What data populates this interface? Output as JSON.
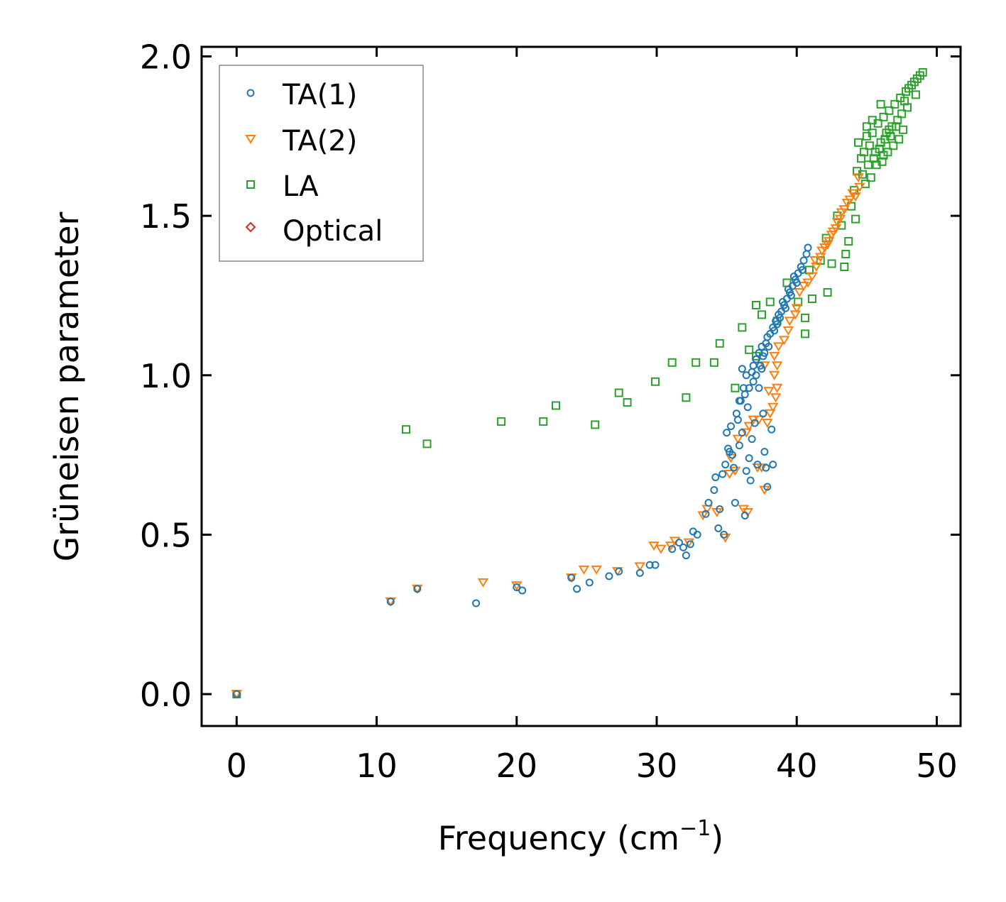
{
  "chart_data": {
    "type": "scatter",
    "title": "",
    "xlabel": "Frequency (cm",
    "xlabel_sup": "−1",
    "xlabel_end": ")",
    "ylabel": "Grüneisen parameter",
    "xlim": [
      -2.5,
      51.7
    ],
    "ylim": [
      -0.1,
      2.03
    ],
    "xticks": [
      0,
      10,
      20,
      30,
      40,
      50
    ],
    "xtick_labels": [
      "0",
      "10",
      "20",
      "30",
      "40",
      "50"
    ],
    "yticks": [
      0.0,
      0.5,
      1.0,
      1.5,
      2.0
    ],
    "ytick_labels": [
      "0.0",
      "0.5",
      "1.0",
      "1.5",
      "2.0"
    ],
    "grid": false,
    "legend_position": "top-left",
    "colors": {
      "ta1": "#1f77b4",
      "ta2": "#ff7f0e",
      "la": "#2ca02c",
      "optical": "#d62728"
    },
    "series": [
      {
        "name": "TA(1)",
        "marker": "circle",
        "color": "#1f77b4",
        "points": [
          [
            0,
            0
          ],
          [
            11,
            0.29
          ],
          [
            12.9,
            0.33
          ],
          [
            17.1,
            0.285
          ],
          [
            20,
            0.335
          ],
          [
            20.4,
            0.325
          ],
          [
            23.9,
            0.365
          ],
          [
            24.3,
            0.33
          ],
          [
            25.2,
            0.35
          ],
          [
            26.6,
            0.37
          ],
          [
            27.3,
            0.385
          ],
          [
            28.8,
            0.38
          ],
          [
            29.5,
            0.405
          ],
          [
            29.9,
            0.405
          ],
          [
            31.1,
            0.455
          ],
          [
            31.6,
            0.475
          ],
          [
            31.9,
            0.46
          ],
          [
            32.1,
            0.435
          ],
          [
            32.4,
            0.47
          ],
          [
            32.6,
            0.51
          ],
          [
            32.9,
            0.5
          ],
          [
            33.5,
            0.565
          ],
          [
            33.7,
            0.6
          ],
          [
            34.1,
            0.64
          ],
          [
            34.2,
            0.68
          ],
          [
            34.4,
            0.52
          ],
          [
            34.5,
            0.58
          ],
          [
            34.7,
            0.69
          ],
          [
            34.8,
            0.5
          ],
          [
            34.9,
            0.72
          ],
          [
            35,
            0.82
          ],
          [
            35.1,
            0.77
          ],
          [
            35.2,
            0.76
          ],
          [
            35.3,
            0.84
          ],
          [
            35.5,
            0.71
          ],
          [
            35.6,
            0.6
          ],
          [
            35.7,
            0.88
          ],
          [
            35.8,
            0.86
          ],
          [
            35.9,
            0.78
          ],
          [
            36,
            0.92
          ],
          [
            36.1,
            0.82
          ],
          [
            36.2,
            0.96
          ],
          [
            36.3,
            0.56
          ],
          [
            36.4,
            0.7
          ],
          [
            36.5,
            0.9
          ],
          [
            36.6,
            0.74
          ],
          [
            36.7,
            0.67
          ],
          [
            36.8,
            0.8
          ],
          [
            36.9,
            0.98
          ],
          [
            37,
            0.85
          ],
          [
            37.1,
            1.0
          ],
          [
            37.2,
            0.72
          ],
          [
            37.3,
            0.96
          ],
          [
            37.5,
            1.02
          ],
          [
            37.6,
            0.88
          ],
          [
            37.7,
            0.76
          ],
          [
            37.8,
            0.71
          ],
          [
            37.9,
            0.65
          ],
          [
            38.2,
            0.83
          ],
          [
            38.3,
            0.72
          ],
          [
            35.4,
            0.75
          ],
          [
            35.9,
            0.92
          ],
          [
            36.3,
            0.94
          ],
          [
            36.6,
            0.96
          ],
          [
            36.8,
            1.01
          ],
          [
            36.9,
            1.03
          ],
          [
            37.1,
            1.05
          ],
          [
            37.3,
            1.07
          ],
          [
            37.5,
            1.09
          ],
          [
            37.6,
            1.06
          ],
          [
            37.8,
            1.1
          ],
          [
            37.9,
            1.12
          ],
          [
            38.1,
            1.13
          ],
          [
            38.3,
            1.15
          ],
          [
            38.5,
            1.17
          ],
          [
            38.7,
            1.19
          ],
          [
            38.9,
            1.2
          ],
          [
            39.1,
            1.22
          ],
          [
            39.3,
            1.24
          ],
          [
            39.5,
            1.26
          ],
          [
            39.7,
            1.28
          ],
          [
            39.9,
            1.3
          ],
          [
            40.1,
            1.32
          ],
          [
            40.3,
            1.34
          ],
          [
            40.5,
            1.36
          ],
          [
            40.7,
            1.38
          ],
          [
            40.8,
            1.4
          ],
          [
            38.0,
            1.09
          ],
          [
            38.4,
            1.14
          ],
          [
            38.8,
            1.18
          ],
          [
            39.2,
            1.21
          ],
          [
            39.6,
            1.25
          ],
          [
            40.0,
            1.29
          ],
          [
            40.4,
            1.33
          ],
          [
            36.1,
            1.02
          ],
          [
            36.4,
            1.0
          ],
          [
            37.4,
            1.03
          ],
          [
            37.7,
            1.07
          ],
          [
            38.6,
            1.16
          ],
          [
            39.0,
            1.23
          ],
          [
            39.4,
            1.27
          ],
          [
            39.8,
            1.31
          ]
        ]
      },
      {
        "name": "TA(2)",
        "marker": "triangle",
        "color": "#ff7f0e",
        "points": [
          [
            0,
            0
          ],
          [
            11,
            0.29
          ],
          [
            12.9,
            0.33
          ],
          [
            17.6,
            0.35
          ],
          [
            20,
            0.34
          ],
          [
            23.9,
            0.365
          ],
          [
            24.8,
            0.39
          ],
          [
            25.7,
            0.39
          ],
          [
            27.2,
            0.385
          ],
          [
            28.8,
            0.4
          ],
          [
            29.8,
            0.465
          ],
          [
            30.3,
            0.455
          ],
          [
            31,
            0.465
          ],
          [
            31.3,
            0.48
          ],
          [
            32.3,
            0.475
          ],
          [
            33.3,
            0.56
          ],
          [
            33.6,
            0.58
          ],
          [
            34.3,
            0.57
          ],
          [
            34.9,
            0.49
          ],
          [
            35.2,
            0.69
          ],
          [
            35.6,
            0.7
          ],
          [
            35.8,
            0.8
          ],
          [
            36.2,
            0.58
          ],
          [
            36.4,
            0.82
          ],
          [
            36.5,
            0.57
          ],
          [
            36.9,
            0.86
          ],
          [
            37.2,
            0.71
          ],
          [
            37.5,
            0.71
          ],
          [
            37.7,
            0.64
          ],
          [
            37.9,
            0.85
          ],
          [
            38.1,
            0.88
          ],
          [
            38.3,
            0.9
          ],
          [
            38.5,
            0.93
          ],
          [
            38.6,
            0.96
          ],
          [
            38.4,
            1.0
          ],
          [
            38.6,
            1.03
          ],
          [
            38.4,
            1.06
          ],
          [
            38.7,
            1.09
          ],
          [
            39.1,
            1.11
          ],
          [
            39.4,
            1.14
          ],
          [
            39.5,
            1.17
          ],
          [
            39.9,
            1.19
          ],
          [
            40.2,
            1.26
          ],
          [
            40.8,
            1.29
          ],
          [
            41.1,
            1.31
          ],
          [
            41.4,
            1.34
          ],
          [
            41.7,
            1.37
          ],
          [
            42,
            1.4
          ],
          [
            42.3,
            1.42
          ],
          [
            42.6,
            1.45
          ],
          [
            42.9,
            1.48
          ],
          [
            43.2,
            1.51
          ],
          [
            43.6,
            1.54
          ],
          [
            44,
            1.57
          ],
          [
            44.4,
            1.62
          ],
          [
            44.5,
            1.59
          ],
          [
            37.3,
            0.86
          ],
          [
            37.7,
            1.03
          ],
          [
            38.0,
            0.95
          ],
          [
            36.6,
            0.84
          ],
          [
            35.3,
            0.74
          ],
          [
            41.3,
            1.36
          ],
          [
            41.8,
            1.39
          ],
          [
            42.2,
            1.41
          ],
          [
            42.5,
            1.44
          ],
          [
            42.8,
            1.46
          ],
          [
            43.1,
            1.49
          ],
          [
            43.4,
            1.52
          ],
          [
            43.8,
            1.55
          ],
          [
            44.2,
            1.56
          ],
          [
            40.5,
            1.28
          ],
          [
            40.0,
            1.21
          ]
        ]
      },
      {
        "name": "LA",
        "marker": "square",
        "color": "#2ca02c",
        "points": [
          [
            0,
            0
          ],
          [
            12.1,
            0.83
          ],
          [
            13.6,
            0.785
          ],
          [
            18.9,
            0.855
          ],
          [
            21.9,
            0.855
          ],
          [
            22.8,
            0.905
          ],
          [
            25.6,
            0.845
          ],
          [
            27.3,
            0.945
          ],
          [
            27.9,
            0.915
          ],
          [
            29.9,
            0.98
          ],
          [
            31.1,
            1.04
          ],
          [
            32.1,
            0.93
          ],
          [
            32.8,
            1.04
          ],
          [
            34.1,
            1.04
          ],
          [
            34.5,
            1.1
          ],
          [
            35.6,
            0.96
          ],
          [
            36.1,
            1.15
          ],
          [
            36.6,
            1.08
          ],
          [
            37.1,
            1.06
          ],
          [
            37.1,
            1.22
          ],
          [
            37.5,
            1.19
          ],
          [
            38.1,
            1.23
          ],
          [
            38.6,
            1.17
          ],
          [
            39.3,
            1.29
          ],
          [
            40.1,
            1.23
          ],
          [
            40.6,
            1.18
          ],
          [
            40.6,
            1.13
          ],
          [
            40.9,
            1.33
          ],
          [
            41.1,
            1.24
          ],
          [
            41.7,
            1.36
          ],
          [
            42.1,
            1.43
          ],
          [
            42.2,
            1.26
          ],
          [
            42.5,
            1.35
          ],
          [
            42.9,
            1.5
          ],
          [
            43.2,
            1.47
          ],
          [
            43.4,
            1.34
          ],
          [
            43.5,
            1.38
          ],
          [
            43.7,
            1.42
          ],
          [
            43.9,
            1.53
          ],
          [
            44.1,
            1.58
          ],
          [
            44.3,
            1.64
          ],
          [
            44.6,
            1.68
          ],
          [
            44.8,
            1.7
          ],
          [
            45,
            1.75
          ],
          [
            45.2,
            1.72
          ],
          [
            45.4,
            1.76
          ],
          [
            45.6,
            1.7
          ],
          [
            45.8,
            1.79
          ],
          [
            46,
            1.73
          ],
          [
            46.2,
            1.81
          ],
          [
            46.4,
            1.76
          ],
          [
            46.6,
            1.83
          ],
          [
            46.8,
            1.78
          ],
          [
            47,
            1.85
          ],
          [
            47.2,
            1.8
          ],
          [
            47.4,
            1.87
          ],
          [
            47.6,
            1.77
          ],
          [
            47.8,
            1.89
          ],
          [
            48,
            1.9
          ],
          [
            48.2,
            1.91
          ],
          [
            48.4,
            1.92
          ],
          [
            48.6,
            1.93
          ],
          [
            48.8,
            1.94
          ],
          [
            49,
            1.95
          ],
          [
            44.2,
            1.49
          ],
          [
            44.7,
            1.63
          ],
          [
            45.1,
            1.66
          ],
          [
            45.5,
            1.68
          ],
          [
            45.9,
            1.71
          ],
          [
            46.3,
            1.74
          ],
          [
            46.7,
            1.75
          ],
          [
            47.1,
            1.78
          ],
          [
            47.5,
            1.82
          ],
          [
            45.3,
            1.62
          ],
          [
            45.7,
            1.66
          ],
          [
            46.1,
            1.67
          ],
          [
            46.5,
            1.7
          ],
          [
            46.9,
            1.72
          ],
          [
            44.9,
            1.6
          ],
          [
            45.0,
            1.78
          ],
          [
            45.4,
            1.8
          ],
          [
            46.0,
            1.85
          ],
          [
            46.6,
            1.77
          ],
          [
            47.3,
            1.74
          ],
          [
            47.9,
            1.84
          ],
          [
            48.5,
            1.88
          ],
          [
            44.4,
            1.73
          ],
          [
            46.2,
            1.69
          ],
          [
            47.7,
            1.86
          ]
        ]
      },
      {
        "name": "Optical",
        "marker": "diamond",
        "color": "#d62728",
        "points": []
      }
    ]
  }
}
